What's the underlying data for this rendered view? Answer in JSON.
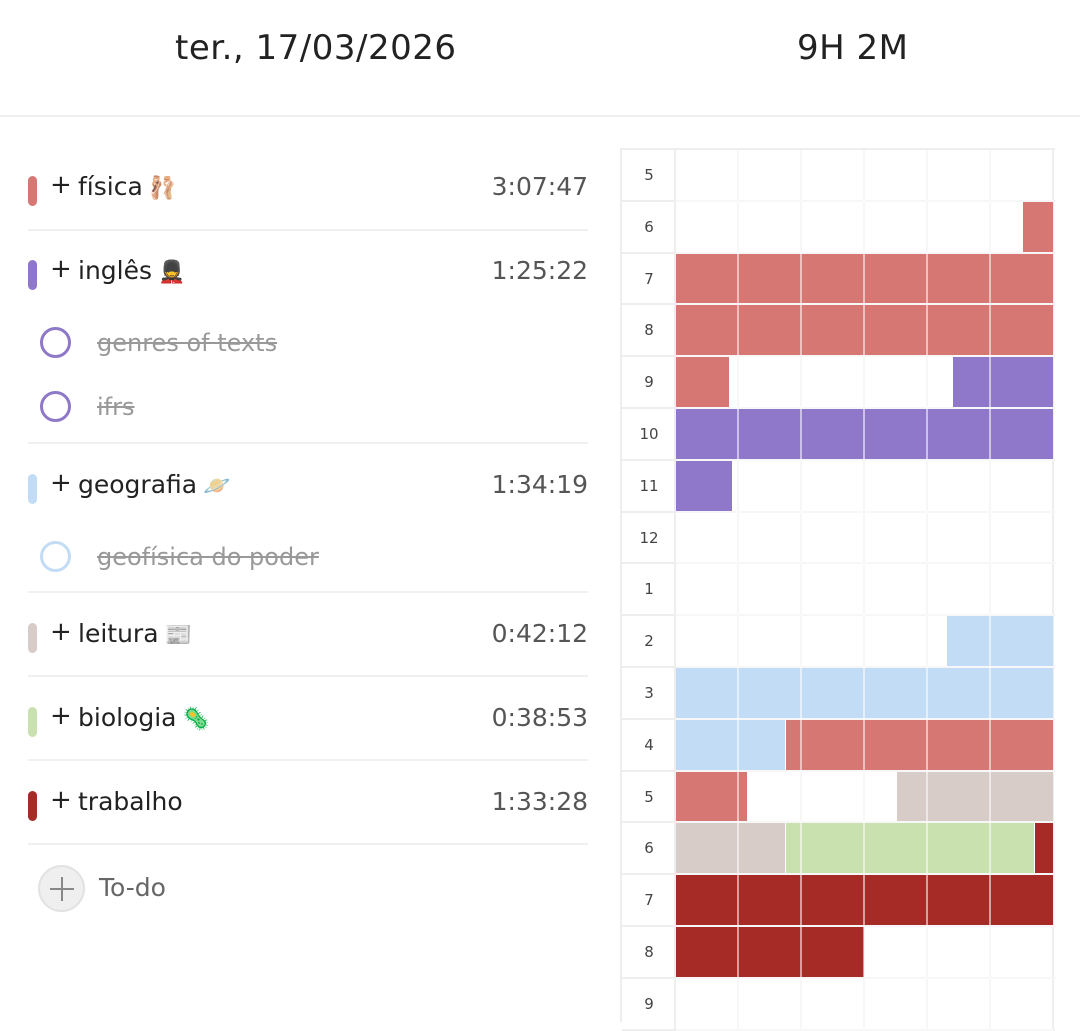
{
  "header": {
    "date": "ter., 17/03/2026",
    "total": "9H 2M"
  },
  "colors": {
    "fisica": "#d67773",
    "ingles": "#8f77c9",
    "geografia": "#c3dcf5",
    "leitura": "#d7ccc8",
    "biologia": "#c9e1ae",
    "trabalho": "#a62b27"
  },
  "subjects": [
    {
      "label": "física",
      "emoji": "🩰",
      "time": "3:07:47",
      "icon": "ballet-shoes-icon"
    },
    {
      "label": "inglês",
      "emoji": "💂",
      "time": "1:25:22",
      "icon": "guard-icon"
    },
    {
      "label": "geografia",
      "emoji": "🪐",
      "time": "1:34:19",
      "icon": "planet-icon"
    },
    {
      "label": "leitura",
      "emoji": "📰",
      "time": "0:42:12",
      "icon": "newspaper-icon"
    },
    {
      "label": "biologia",
      "emoji": "🦠",
      "time": "0:38:53",
      "icon": "microbe-icon"
    },
    {
      "label": "trabalho",
      "emoji": "",
      "time": "1:33:28",
      "icon": ""
    }
  ],
  "plus_symbol": "+",
  "tasks": {
    "ingles": [
      "genres of texts",
      "ifrs"
    ],
    "geografia": [
      "geofísica do poder"
    ]
  },
  "todo": {
    "label": "To-do"
  },
  "timeline": {
    "hours": [
      "5",
      "6",
      "7",
      "8",
      "9",
      "10",
      "11",
      "12",
      "1",
      "2",
      "3",
      "4",
      "5",
      "6",
      "7",
      "8",
      "9"
    ]
  }
}
